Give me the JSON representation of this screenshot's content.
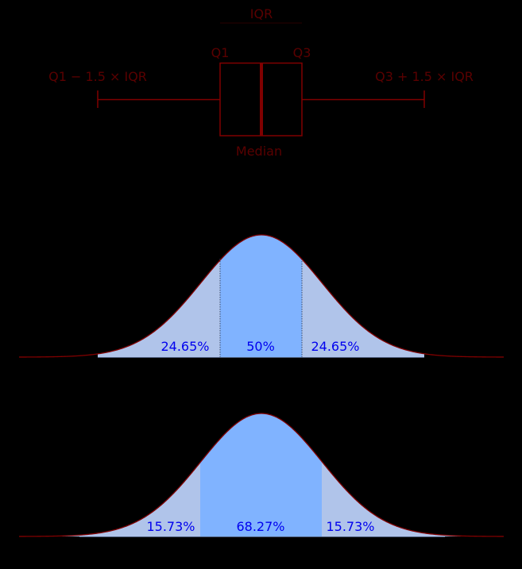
{
  "colors": {
    "background": "#000000",
    "boxplot_line": "#800000",
    "boxplot_text": "#5a0000",
    "curve_line": "#800000",
    "fill_inner": "#80b3ff",
    "fill_outer": "#b0c4ea",
    "percent_text": "#0000ee",
    "baseline": "#4d5d7a"
  },
  "boxplot": {
    "iqr_label": "IQR",
    "q1_label": "Q1",
    "q3_label": "Q3",
    "lower_whisker_label": "Q1 − 1.5 × IQR",
    "upper_whisker_label": "Q3 + 1.5 × IQR",
    "median_label": "Median"
  },
  "curve_quartiles": {
    "left_tail_pct": "24.65%",
    "middle_pct": "50%",
    "right_tail_pct": "24.65%"
  },
  "curve_sigma": {
    "left_tail_pct": "15.73%",
    "middle_pct": "68.27%",
    "right_tail_pct": "15.73%"
  },
  "chart_data": [
    {
      "type": "boxplot",
      "title": "",
      "labels": [
        "IQR",
        "Q1",
        "Q3",
        "Q1 − 1.5 × IQR",
        "Q3 + 1.5 × IQR",
        "Median"
      ],
      "positions_sigma": {
        "lower_whisker": -2.698,
        "q1": -0.6745,
        "median": 0,
        "q3": 0.6745,
        "upper_whisker": 2.698
      }
    },
    {
      "type": "area",
      "title": "Normal distribution split at Q1/Q3 and whiskers",
      "regions": [
        {
          "from_sigma": -2.698,
          "to_sigma": -0.6745,
          "label": "24.65%",
          "value": 24.65
        },
        {
          "from_sigma": -0.6745,
          "to_sigma": 0.6745,
          "label": "50%",
          "value": 50
        },
        {
          "from_sigma": 0.6745,
          "to_sigma": 2.698,
          "label": "24.65%",
          "value": 24.65
        }
      ],
      "xlim_sigma": [
        -4,
        4
      ]
    },
    {
      "type": "area",
      "title": "Normal distribution split at ±1σ",
      "regions": [
        {
          "from_sigma": -4,
          "to_sigma": -1,
          "label": "15.73%",
          "value": 15.73
        },
        {
          "from_sigma": -1,
          "to_sigma": 1,
          "label": "68.27%",
          "value": 68.27
        },
        {
          "from_sigma": 1,
          "to_sigma": 4,
          "label": "15.73%",
          "value": 15.73
        }
      ],
      "xlim_sigma": [
        -4,
        4
      ]
    }
  ]
}
